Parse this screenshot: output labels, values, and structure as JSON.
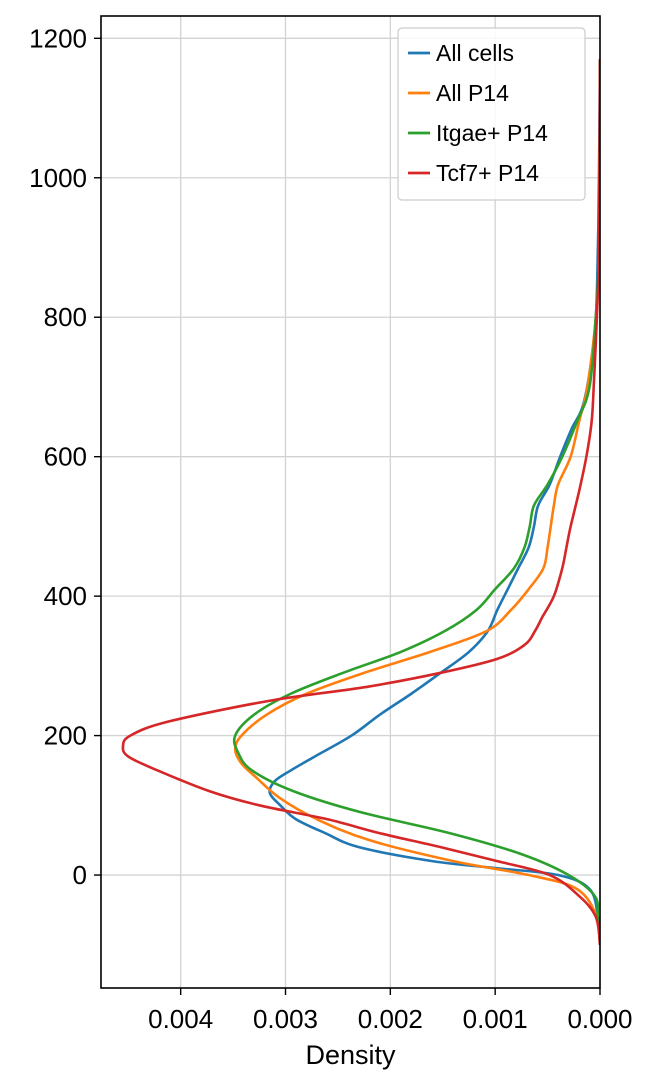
{
  "chart_data": {
    "type": "line",
    "orientation": "horizontal-density",
    "xlabel": "Density",
    "ylabel": "",
    "xlim": [
      0.00476,
      0.0
    ],
    "ylim": [
      -162,
      1232
    ],
    "x_inverted": true,
    "xticks": [
      0.004,
      0.003,
      0.002,
      0.001,
      0.0
    ],
    "xtick_labels": [
      "0.004",
      "0.003",
      "0.002",
      "0.001",
      "0.000"
    ],
    "yticks": [
      0,
      200,
      400,
      600,
      800,
      1000,
      1200
    ],
    "ytick_labels": [
      "0",
      "200",
      "400",
      "600",
      "800",
      "1000",
      "1200"
    ],
    "grid": true,
    "legend_position": "top-right",
    "series": [
      {
        "name": "All cells",
        "color": "#1f77b4",
        "points": [
          [
            -100,
            0.0
          ],
          [
            -60,
            2e-05
          ],
          [
            -20,
            0.0001
          ],
          [
            0,
            0.0004
          ],
          [
            10,
            0.001
          ],
          [
            20,
            0.0016
          ],
          [
            40,
            0.0023
          ],
          [
            60,
            0.00262
          ],
          [
            80,
            0.0029
          ],
          [
            100,
            0.00305
          ],
          [
            118,
            0.00315
          ],
          [
            135,
            0.0031
          ],
          [
            150,
            0.00295
          ],
          [
            170,
            0.00272
          ],
          [
            200,
            0.00237
          ],
          [
            230,
            0.0021
          ],
          [
            260,
            0.0018
          ],
          [
            290,
            0.00152
          ],
          [
            320,
            0.00125
          ],
          [
            350,
            0.00107
          ],
          [
            380,
            0.00098
          ],
          [
            410,
            0.00088
          ],
          [
            440,
            0.00078
          ],
          [
            470,
            0.00068
          ],
          [
            500,
            0.00063
          ],
          [
            530,
            0.00059
          ],
          [
            560,
            0.00048
          ],
          [
            600,
            0.00038
          ],
          [
            640,
            0.00027
          ],
          [
            670,
            0.00017
          ],
          [
            720,
            0.0001
          ],
          [
            800,
            4e-05
          ],
          [
            900,
            2e-05
          ],
          [
            1000,
            1e-05
          ],
          [
            1170,
            0.0
          ]
        ]
      },
      {
        "name": "All P14",
        "color": "#ff7f0e",
        "points": [
          [
            -100,
            0.0
          ],
          [
            -60,
            3e-05
          ],
          [
            -20,
            0.00022
          ],
          [
            0,
            0.00068
          ],
          [
            20,
            0.0014
          ],
          [
            50,
            0.0022
          ],
          [
            80,
            0.0027
          ],
          [
            110,
            0.00305
          ],
          [
            140,
            0.00328
          ],
          [
            160,
            0.00342
          ],
          [
            180,
            0.00348
          ],
          [
            200,
            0.00342
          ],
          [
            230,
            0.00318
          ],
          [
            260,
            0.0028
          ],
          [
            290,
            0.00225
          ],
          [
            320,
            0.00162
          ],
          [
            350,
            0.00108
          ],
          [
            380,
            0.00085
          ],
          [
            410,
            0.00068
          ],
          [
            440,
            0.00054
          ],
          [
            470,
            0.0005
          ],
          [
            500,
            0.00047
          ],
          [
            530,
            0.00044
          ],
          [
            560,
            0.0004
          ],
          [
            600,
            0.00028
          ],
          [
            650,
            0.0002
          ],
          [
            700,
            0.00012
          ],
          [
            800,
            4e-05
          ],
          [
            900,
            1e-05
          ],
          [
            1170,
            0.0
          ]
        ]
      },
      {
        "name": "Itgae+ P14",
        "color": "#2ca02c",
        "points": [
          [
            -100,
            0.0
          ],
          [
            -60,
            2e-05
          ],
          [
            -30,
            5e-05
          ],
          [
            0,
            0.0003
          ],
          [
            30,
            0.00075
          ],
          [
            60,
            0.00143
          ],
          [
            90,
            0.00228
          ],
          [
            120,
            0.00292
          ],
          [
            150,
            0.00332
          ],
          [
            175,
            0.00345
          ],
          [
            200,
            0.00348
          ],
          [
            230,
            0.0033
          ],
          [
            260,
            0.00295
          ],
          [
            290,
            0.00245
          ],
          [
            320,
            0.0019
          ],
          [
            350,
            0.00148
          ],
          [
            380,
            0.00118
          ],
          [
            410,
            0.001
          ],
          [
            440,
            0.00082
          ],
          [
            470,
            0.00072
          ],
          [
            500,
            0.00067
          ],
          [
            530,
            0.00063
          ],
          [
            560,
            0.0005
          ],
          [
            600,
            0.00036
          ],
          [
            650,
            0.00022
          ],
          [
            700,
            0.0001
          ],
          [
            800,
            4e-05
          ],
          [
            900,
            1e-05
          ],
          [
            1170,
            0.0
          ]
        ]
      },
      {
        "name": "Tcf7+ P14",
        "color": "#d62728",
        "points": [
          [
            -100,
            0.0
          ],
          [
            -60,
            4e-05
          ],
          [
            -30,
            0.0002
          ],
          [
            0,
            0.00048
          ],
          [
            20,
            0.00098
          ],
          [
            40,
            0.00152
          ],
          [
            60,
            0.0021
          ],
          [
            80,
            0.0026
          ],
          [
            100,
            0.00325
          ],
          [
            120,
            0.00372
          ],
          [
            150,
            0.00422
          ],
          [
            170,
            0.0045
          ],
          [
            185,
            0.00455
          ],
          [
            200,
            0.00448
          ],
          [
            220,
            0.00412
          ],
          [
            250,
            0.00315
          ],
          [
            270,
            0.00222
          ],
          [
            290,
            0.00152
          ],
          [
            310,
            0.00098
          ],
          [
            330,
            0.00072
          ],
          [
            350,
            0.00062
          ],
          [
            370,
            0.00055
          ],
          [
            400,
            0.00044
          ],
          [
            440,
            0.00036
          ],
          [
            470,
            0.00032
          ],
          [
            500,
            0.00028
          ],
          [
            550,
            0.0002
          ],
          [
            600,
            0.00013
          ],
          [
            650,
            8e-05
          ],
          [
            700,
            6e-05
          ],
          [
            800,
            3e-05
          ],
          [
            900,
            1e-05
          ],
          [
            1170,
            0.0
          ]
        ]
      }
    ]
  }
}
